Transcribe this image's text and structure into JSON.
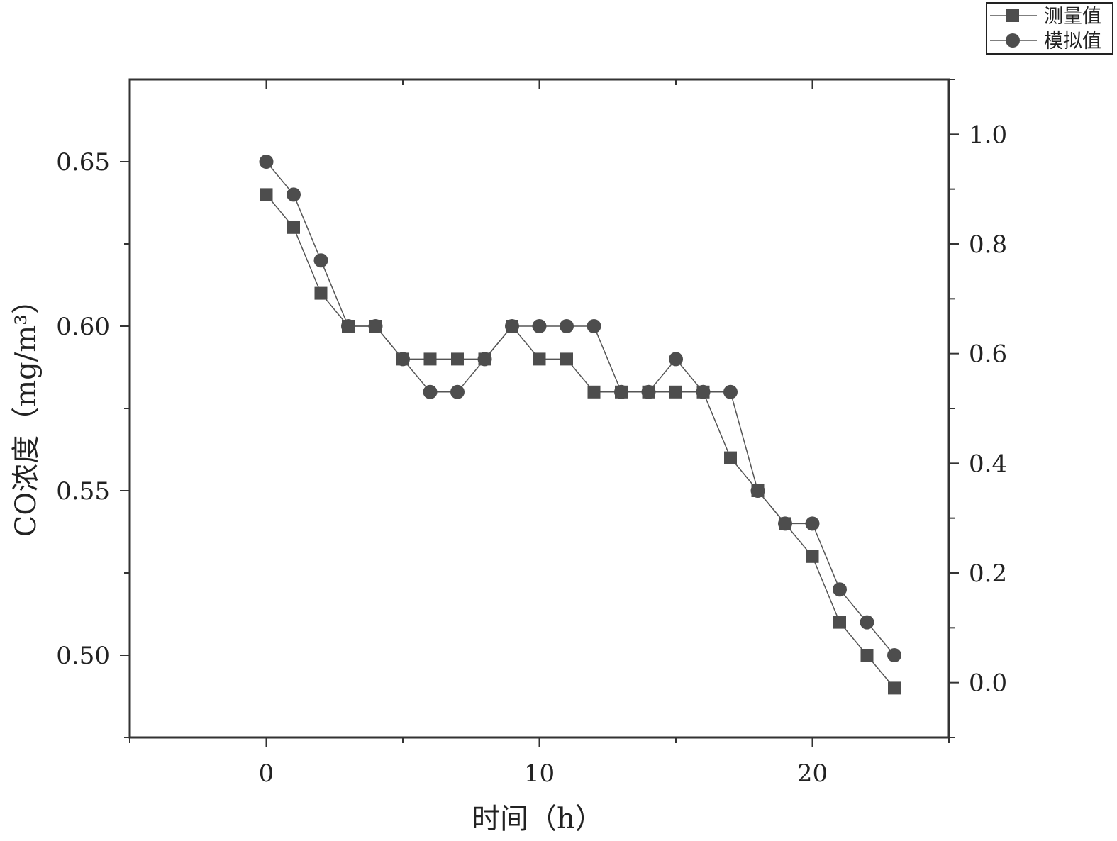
{
  "chart_data": {
    "type": "line",
    "title": "",
    "xlabel": "时间（h）",
    "ylabel": "CO浓度（mg/m³）",
    "xlim": [
      -5,
      25
    ],
    "ylim": [
      0.475,
      0.675
    ],
    "y2lim": [
      -0.1,
      1.1
    ],
    "x_ticks": [
      0,
      10,
      20
    ],
    "y_ticks": [
      0.5,
      0.55,
      0.6,
      0.65
    ],
    "y_tick_labels": [
      "0.50",
      "0.55",
      "0.60",
      "0.65"
    ],
    "y2_ticks": [
      0.0,
      0.2,
      0.4,
      0.6,
      0.8,
      1.0
    ],
    "y2_tick_labels": [
      "0.0",
      "0.2",
      "0.4",
      "0.6",
      "0.8",
      "1.0"
    ],
    "grid": false,
    "legend_position": "top-right",
    "colors": {
      "marker": "#4d4d4d",
      "line": "#555555",
      "axis": "#333333"
    },
    "x": [
      0,
      1,
      2,
      3,
      4,
      5,
      6,
      7,
      8,
      9,
      10,
      11,
      12,
      13,
      14,
      15,
      16,
      17,
      18,
      19,
      20,
      21,
      22,
      23
    ],
    "series": [
      {
        "name": "测量值",
        "marker": "square",
        "values": [
          0.64,
          0.63,
          0.61,
          0.6,
          0.6,
          0.59,
          0.59,
          0.59,
          0.59,
          0.6,
          0.59,
          0.59,
          0.58,
          0.58,
          0.58,
          0.58,
          0.58,
          0.56,
          0.55,
          0.54,
          0.53,
          0.51,
          0.5,
          0.49
        ]
      },
      {
        "name": "模拟值",
        "marker": "circle",
        "values": [
          0.65,
          0.64,
          0.62,
          0.6,
          0.6,
          0.59,
          0.58,
          0.58,
          0.59,
          0.6,
          0.6,
          0.6,
          0.6,
          0.58,
          0.58,
          0.59,
          0.58,
          0.58,
          0.55,
          0.54,
          0.54,
          0.52,
          0.51,
          0.5
        ]
      }
    ]
  }
}
